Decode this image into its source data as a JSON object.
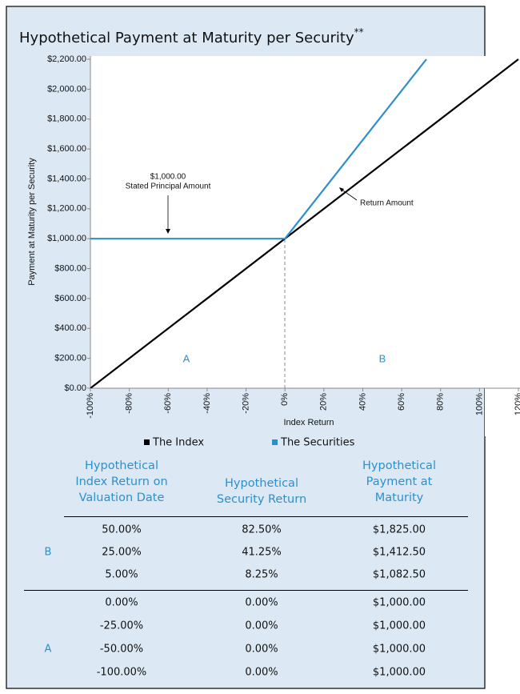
{
  "chart_data": {
    "type": "line",
    "title": "Hypothetical Payment at Maturity per Security",
    "title_mark": "**",
    "xlabel": "Index Return",
    "ylabel": "Payment at Maturity per Security",
    "xlim": [
      -100,
      120
    ],
    "ylim": [
      0,
      2200
    ],
    "xticks": [
      {
        "value": -100,
        "label": "-100%"
      },
      {
        "value": -80,
        "label": "-80%"
      },
      {
        "value": -60,
        "label": "-60%"
      },
      {
        "value": -40,
        "label": "-40%"
      },
      {
        "value": -20,
        "label": "-20%"
      },
      {
        "value": 0,
        "label": "0%"
      },
      {
        "value": 20,
        "label": "20%"
      },
      {
        "value": 40,
        "label": "40%"
      },
      {
        "value": 60,
        "label": "60%"
      },
      {
        "value": 80,
        "label": "80%"
      },
      {
        "value": 100,
        "label": "100%"
      },
      {
        "value": 120,
        "label": "120%"
      }
    ],
    "yticks": [
      {
        "value": 0,
        "label": "$0.00"
      },
      {
        "value": 200,
        "label": "$200.00"
      },
      {
        "value": 400,
        "label": "$400.00"
      },
      {
        "value": 600,
        "label": "$600.00"
      },
      {
        "value": 800,
        "label": "$800.00"
      },
      {
        "value": 1000,
        "label": "$1,000.00"
      },
      {
        "value": 1200,
        "label": "$1,200.00"
      },
      {
        "value": 1400,
        "label": "$1,400.00"
      },
      {
        "value": 1600,
        "label": "$1,600.00"
      },
      {
        "value": 1800,
        "label": "$1,800.00"
      },
      {
        "value": 2000,
        "label": "$2,000.00"
      },
      {
        "value": 2200,
        "label": "$2,200.00"
      }
    ],
    "series": [
      {
        "name": "The Index",
        "color": "#000000",
        "x": [
          -100,
          0,
          120
        ],
        "values": [
          0,
          1000,
          2200
        ]
      },
      {
        "name": "The Securities",
        "color": "#2e8fcc",
        "x": [
          -100,
          0,
          72.7
        ],
        "values": [
          1000,
          1000,
          2200
        ]
      }
    ],
    "annotations": {
      "principal_value": "$1,000.00",
      "principal_text": "Stated Principal Amount",
      "return_text": "Return Amount",
      "region_a": "A",
      "region_b": "B"
    }
  },
  "table": {
    "headers": [
      "Hypothetical Index Return on Valuation Date",
      "Hypothetical Security Return",
      "Hypothetical Payment at Maturity"
    ],
    "groups": [
      {
        "label": "B",
        "rows": [
          [
            "50.00%",
            "82.50%",
            "$1,825.00"
          ],
          [
            "25.00%",
            "41.25%",
            "$1,412.50"
          ],
          [
            "5.00%",
            "8.25%",
            "$1,082.50"
          ]
        ]
      },
      {
        "label": "A",
        "rows": [
          [
            "0.00%",
            "0.00%",
            "$1,000.00"
          ],
          [
            "-25.00%",
            "0.00%",
            "$1,000.00"
          ],
          [
            "-50.00%",
            "0.00%",
            "$1,000.00"
          ],
          [
            "-100.00%",
            "0.00%",
            "$1,000.00"
          ]
        ]
      }
    ]
  }
}
